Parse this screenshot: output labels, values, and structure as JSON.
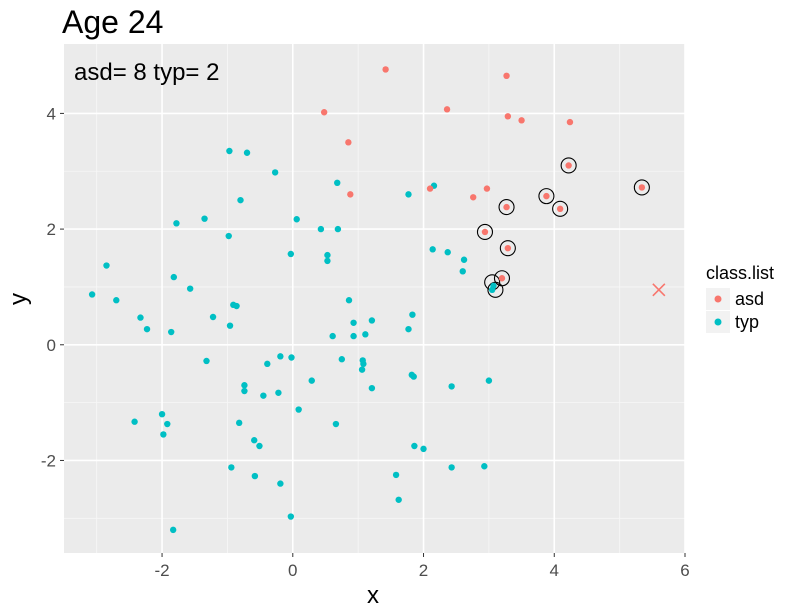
{
  "chart_data": {
    "type": "scatter",
    "title": "Age  24",
    "annotation": "asd= 8 typ= 2",
    "xlabel": "x",
    "ylabel": "y",
    "xlim": [
      -3.5,
      6.0
    ],
    "ylim": [
      -3.6,
      5.2
    ],
    "xticks": [
      -2,
      0,
      2,
      4,
      6
    ],
    "yticks": [
      -2,
      0,
      2,
      4
    ],
    "grid": true,
    "background": "#ebebeb",
    "legend": {
      "title": "class.list",
      "placement": "right",
      "entries": [
        {
          "label": "asd",
          "color": "#f8766d"
        },
        {
          "label": "typ",
          "color": "#00bfc4"
        }
      ]
    },
    "series": [
      {
        "name": "asd",
        "color": "#f8766d",
        "points": [
          [
            1.42,
            4.76
          ],
          [
            3.27,
            4.65
          ],
          [
            2.36,
            4.07
          ],
          [
            0.48,
            4.02
          ],
          [
            3.29,
            3.95
          ],
          [
            3.5,
            3.88
          ],
          [
            4.24,
            3.85
          ],
          [
            0.85,
            3.5
          ],
          [
            4.22,
            3.1
          ],
          [
            5.34,
            2.72
          ],
          [
            2.97,
            2.7
          ],
          [
            2.1,
            2.7
          ],
          [
            0.88,
            2.6
          ],
          [
            2.76,
            2.55
          ],
          [
            3.88,
            2.57
          ],
          [
            3.27,
            2.38
          ],
          [
            4.09,
            2.35
          ],
          [
            2.94,
            1.95
          ],
          [
            3.29,
            1.67
          ],
          [
            3.2,
            1.15
          ]
        ]
      },
      {
        "name": "typ",
        "color": "#00bfc4",
        "points": [
          [
            -0.97,
            3.35
          ],
          [
            -0.7,
            3.32
          ],
          [
            -0.27,
            2.98
          ],
          [
            0.68,
            2.8
          ],
          [
            2.16,
            2.75
          ],
          [
            1.77,
            2.6
          ],
          [
            -0.8,
            2.5
          ],
          [
            -1.35,
            2.18
          ],
          [
            0.06,
            2.17
          ],
          [
            -1.78,
            2.1
          ],
          [
            0.43,
            2.0
          ],
          [
            0.69,
            2.0
          ],
          [
            -0.98,
            1.88
          ],
          [
            2.14,
            1.65
          ],
          [
            2.37,
            1.6
          ],
          [
            -0.03,
            1.57
          ],
          [
            0.53,
            1.55
          ],
          [
            0.53,
            1.45
          ],
          [
            2.62,
            1.47
          ],
          [
            -2.85,
            1.37
          ],
          [
            2.6,
            1.27
          ],
          [
            -1.82,
            1.17
          ],
          [
            -1.57,
            0.97
          ],
          [
            3.07,
            1.02
          ],
          [
            3.05,
            0.95
          ],
          [
            -3.07,
            0.87
          ],
          [
            -2.7,
            0.77
          ],
          [
            -0.91,
            0.69
          ],
          [
            -0.86,
            0.67
          ],
          [
            0.86,
            0.77
          ],
          [
            1.83,
            0.52
          ],
          [
            -2.33,
            0.47
          ],
          [
            -1.22,
            0.48
          ],
          [
            1.21,
            0.42
          ],
          [
            0.93,
            0.38
          ],
          [
            -0.96,
            0.33
          ],
          [
            1.77,
            0.27
          ],
          [
            -2.23,
            0.27
          ],
          [
            -1.86,
            0.22
          ],
          [
            1.11,
            0.18
          ],
          [
            0.93,
            0.15
          ],
          [
            0.61,
            0.15
          ],
          [
            -0.19,
            -0.2
          ],
          [
            -0.02,
            -0.22
          ],
          [
            0.75,
            -0.25
          ],
          [
            1.07,
            -0.27
          ],
          [
            -1.32,
            -0.28
          ],
          [
            -0.39,
            -0.33
          ],
          [
            1.08,
            -0.33
          ],
          [
            1.06,
            -0.43
          ],
          [
            1.82,
            -0.52
          ],
          [
            1.85,
            -0.55
          ],
          [
            0.29,
            -0.62
          ],
          [
            3.0,
            -0.62
          ],
          [
            -0.74,
            -0.7
          ],
          [
            2.43,
            -0.72
          ],
          [
            1.21,
            -0.75
          ],
          [
            -0.74,
            -0.8
          ],
          [
            -0.22,
            -0.83
          ],
          [
            -0.45,
            -0.88
          ],
          [
            0.09,
            -1.12
          ],
          [
            -2.0,
            -1.2
          ],
          [
            -2.42,
            -1.33
          ],
          [
            -1.92,
            -1.37
          ],
          [
            -0.82,
            -1.35
          ],
          [
            0.66,
            -1.37
          ],
          [
            -1.98,
            -1.55
          ],
          [
            -0.59,
            -1.65
          ],
          [
            -0.51,
            -1.75
          ],
          [
            1.86,
            -1.75
          ],
          [
            2.0,
            -1.8
          ],
          [
            -0.94,
            -2.12
          ],
          [
            2.43,
            -2.12
          ],
          [
            2.93,
            -2.1
          ],
          [
            -0.58,
            -2.27
          ],
          [
            1.58,
            -2.25
          ],
          [
            -0.19,
            -2.4
          ],
          [
            1.62,
            -2.68
          ],
          [
            -0.03,
            -2.97
          ],
          [
            -1.83,
            -3.2
          ]
        ]
      }
    ],
    "highlighted_points": [
      [
        4.22,
        3.1
      ],
      [
        5.34,
        2.72
      ],
      [
        3.88,
        2.57
      ],
      [
        4.09,
        2.35
      ],
      [
        3.27,
        2.38
      ],
      [
        2.94,
        1.95
      ],
      [
        3.29,
        1.67
      ],
      [
        3.2,
        1.15
      ],
      [
        3.05,
        1.08
      ],
      [
        3.1,
        0.95
      ]
    ],
    "query_point": {
      "x": 5.6,
      "y": 0.95,
      "marker": "x",
      "color": "#f8766d"
    }
  }
}
